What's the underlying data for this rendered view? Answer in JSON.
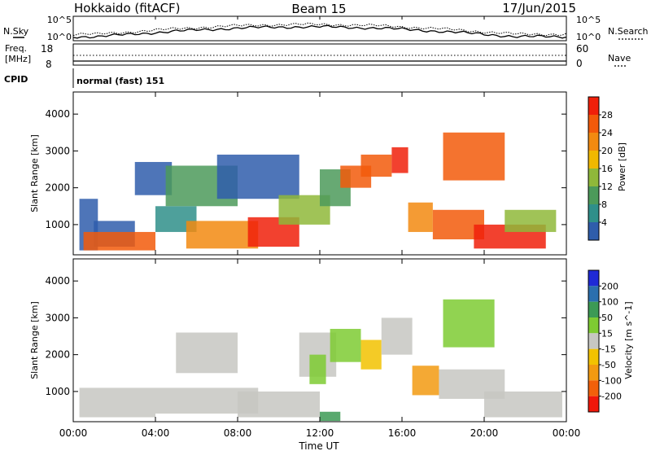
{
  "header": {
    "left_title": "Hokkaido (fitACF)",
    "center_title": "Beam 15",
    "right_title": "17/Jun/2015"
  },
  "top_panels": {
    "nsky_label": "N.Sky",
    "nsearch_label": "N.Search",
    "log_tick_top": "10^5",
    "log_tick_bottom": "10^0",
    "freq_label_line1": "Freq.",
    "freq_label_line2": "[MHz]",
    "freq_ticks": [
      "18",
      "8"
    ],
    "nave_label": "Nave",
    "nave_ticks": [
      "60",
      "0"
    ],
    "cpid_label": "CPID",
    "cpid_text": "normal (fast) 151"
  },
  "x_axis": {
    "label": "Time UT",
    "ticks": [
      "00:00",
      "04:00",
      "08:00",
      "12:00",
      "16:00",
      "20:00",
      "00:00"
    ]
  },
  "panels": {
    "power": {
      "ylabel": "Slant Range [km]",
      "yticks": [
        "4000",
        "3000",
        "2000",
        "1000"
      ],
      "colorbar_label": "Power [dB]",
      "colorbar_ticks": [
        "28",
        "24",
        "20",
        "16",
        "12",
        "8",
        "4"
      ],
      "colors": [
        "#1a14f0",
        "#2f5dab",
        "#2f8f8a",
        "#4c9a5a",
        "#8fb83a",
        "#f0b800",
        "#f28a10",
        "#f25a0a",
        "#f0200a"
      ]
    },
    "velocity": {
      "ylabel": "Slant Range [km]",
      "yticks": [
        "4000",
        "3000",
        "2000",
        "1000"
      ],
      "colorbar_label": "Velocity [m s^-1]",
      "colorbar_ticks": [
        "200",
        "100",
        "50",
        "15",
        "-15",
        "-50",
        "-100",
        "-200"
      ],
      "colors": [
        "#1f2ad6",
        "#2b6fae",
        "#3c9a55",
        "#7ecb32",
        "#c7c7c2",
        "#f2c200",
        "#f29a10",
        "#f2600a",
        "#f0180a"
      ]
    }
  },
  "chart_data": {
    "type": "heatmap",
    "x_range_hours": [
      0,
      24
    ],
    "y_range_km": [
      180,
      4600
    ],
    "power_regions": [
      {
        "t0": 0.3,
        "t1": 1.2,
        "r0": 300,
        "r1": 1700,
        "color": "#2f5dab"
      },
      {
        "t0": 1.0,
        "t1": 3.0,
        "r0": 400,
        "r1": 1100,
        "color": "#2f5dab"
      },
      {
        "t0": 3.0,
        "t1": 4.8,
        "r0": 1800,
        "r1": 2700,
        "color": "#2f5dab"
      },
      {
        "t0": 4.0,
        "t1": 6.0,
        "r0": 800,
        "r1": 1500,
        "color": "#2f8f8a"
      },
      {
        "t0": 4.5,
        "t1": 8.0,
        "r0": 1500,
        "r1": 2600,
        "color": "#4c9a5a"
      },
      {
        "t0": 7.0,
        "t1": 11.0,
        "r0": 1700,
        "r1": 2900,
        "color": "#2f5dab"
      },
      {
        "t0": 0.5,
        "t1": 4.0,
        "r0": 300,
        "r1": 800,
        "color": "#f25a0a"
      },
      {
        "t0": 5.5,
        "t1": 9.0,
        "r0": 350,
        "r1": 1100,
        "color": "#f28a10"
      },
      {
        "t0": 8.5,
        "t1": 11.0,
        "r0": 400,
        "r1": 1200,
        "color": "#f0200a"
      },
      {
        "t0": 10.0,
        "t1": 12.5,
        "r0": 1000,
        "r1": 1800,
        "color": "#8fb83a"
      },
      {
        "t0": 12.0,
        "t1": 13.5,
        "r0": 1500,
        "r1": 2500,
        "color": "#4c9a5a"
      },
      {
        "t0": 13.0,
        "t1": 14.5,
        "r0": 2000,
        "r1": 2600,
        "color": "#f25a0a"
      },
      {
        "t0": 14.0,
        "t1": 15.5,
        "r0": 2300,
        "r1": 2900,
        "color": "#f25a0a"
      },
      {
        "t0": 15.5,
        "t1": 16.3,
        "r0": 2400,
        "r1": 3100,
        "color": "#f0200a"
      },
      {
        "t0": 16.3,
        "t1": 17.5,
        "r0": 800,
        "r1": 1600,
        "color": "#f28a10"
      },
      {
        "t0": 17.5,
        "t1": 20.0,
        "r0": 600,
        "r1": 1400,
        "color": "#f25a0a"
      },
      {
        "t0": 19.5,
        "t1": 23.0,
        "r0": 350,
        "r1": 1000,
        "color": "#f0200a"
      },
      {
        "t0": 18.0,
        "t1": 21.0,
        "r0": 2200,
        "r1": 3500,
        "color": "#f25a0a"
      },
      {
        "t0": 21.0,
        "t1": 23.5,
        "r0": 800,
        "r1": 1400,
        "color": "#8fb83a"
      }
    ],
    "velocity_regions": [
      {
        "t0": 0.3,
        "t1": 4.0,
        "r0": 300,
        "r1": 1100,
        "color": "#c7c7c2"
      },
      {
        "t0": 4.0,
        "t1": 9.0,
        "r0": 400,
        "r1": 1100,
        "color": "#c7c7c2"
      },
      {
        "t0": 5.0,
        "t1": 8.0,
        "r0": 1500,
        "r1": 2600,
        "color": "#c7c7c2"
      },
      {
        "t0": 8.0,
        "t1": 12.0,
        "r0": 300,
        "r1": 1000,
        "color": "#c7c7c2"
      },
      {
        "t0": 11.0,
        "t1": 12.8,
        "r0": 1400,
        "r1": 2600,
        "color": "#c7c7c2"
      },
      {
        "t0": 11.5,
        "t1": 12.3,
        "r0": 1200,
        "r1": 2000,
        "color": "#7ecb32"
      },
      {
        "t0": 12.5,
        "t1": 14.0,
        "r0": 1800,
        "r1": 2700,
        "color": "#7ecb32"
      },
      {
        "t0": 14.0,
        "t1": 15.0,
        "r0": 1600,
        "r1": 2400,
        "color": "#f2c200"
      },
      {
        "t0": 15.0,
        "t1": 16.5,
        "r0": 2000,
        "r1": 3000,
        "color": "#c7c7c2"
      },
      {
        "t0": 16.5,
        "t1": 17.8,
        "r0": 900,
        "r1": 1700,
        "color": "#f29a10"
      },
      {
        "t0": 17.8,
        "t1": 21.0,
        "r0": 800,
        "r1": 1600,
        "color": "#c7c7c2"
      },
      {
        "t0": 18.0,
        "t1": 20.5,
        "r0": 2200,
        "r1": 3500,
        "color": "#7ecb32"
      },
      {
        "t0": 20.0,
        "t1": 23.8,
        "r0": 300,
        "r1": 1000,
        "color": "#c7c7c2"
      },
      {
        "t0": 12.0,
        "t1": 13.0,
        "r0": 200,
        "r1": 450,
        "color": "#3c9a55"
      }
    ]
  }
}
